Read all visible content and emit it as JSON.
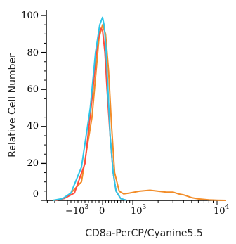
{
  "chart_data": {
    "type": "line",
    "title": "",
    "xlabel": "CD8a-PerCP/Cyanine5.5",
    "ylabel": "Relative Cell Number",
    "ylim": [
      0,
      100
    ],
    "y_ticks": [
      "0",
      "20",
      "40",
      "60",
      "80",
      "100"
    ],
    "x_scale": "biexponential",
    "x_ticks": [
      {
        "base": "−10",
        "exp": "3"
      },
      {
        "base": "0",
        "exp": ""
      },
      {
        "base": "10",
        "exp": "3"
      },
      {
        "base": "10",
        "exp": "4"
      }
    ],
    "grid": false,
    "series": [
      {
        "color": "#f28c28",
        "x": [
          -2200,
          -1500,
          -1000,
          -600,
          -300,
          -100,
          0,
          100,
          200,
          300,
          400,
          550,
          700,
          900,
          1200,
          1600,
          2000,
          2500,
          3000,
          3500,
          4000,
          5000,
          6000,
          8000,
          10000,
          14000
        ],
        "y": [
          0,
          0.5,
          2,
          10,
          45,
          88,
          95,
          90,
          70,
          40,
          15,
          5,
          3.5,
          4,
          5,
          5.5,
          5,
          4.5,
          4.5,
          3.5,
          3,
          1.5,
          0.8,
          0.3,
          0.1,
          0
        ]
      },
      {
        "color": "#ff4b3e",
        "x": [
          -2000,
          -1200,
          -800,
          -500,
          -300,
          -150,
          -50,
          0,
          80,
          150,
          250,
          350,
          450,
          600,
          800
        ],
        "y": [
          0,
          1,
          4,
          20,
          55,
          85,
          93,
          92,
          80,
          60,
          35,
          15,
          5,
          1,
          0
        ]
      },
      {
        "color": "#2ec5e8",
        "x": [
          -2200,
          -1300,
          -900,
          -600,
          -350,
          -200,
          -80,
          0,
          60,
          120,
          180,
          250,
          350,
          450,
          600,
          800
        ],
        "y": [
          0,
          1,
          4,
          18,
          50,
          80,
          95,
          99,
          94,
          80,
          60,
          35,
          15,
          5,
          1,
          0
        ]
      }
    ]
  }
}
